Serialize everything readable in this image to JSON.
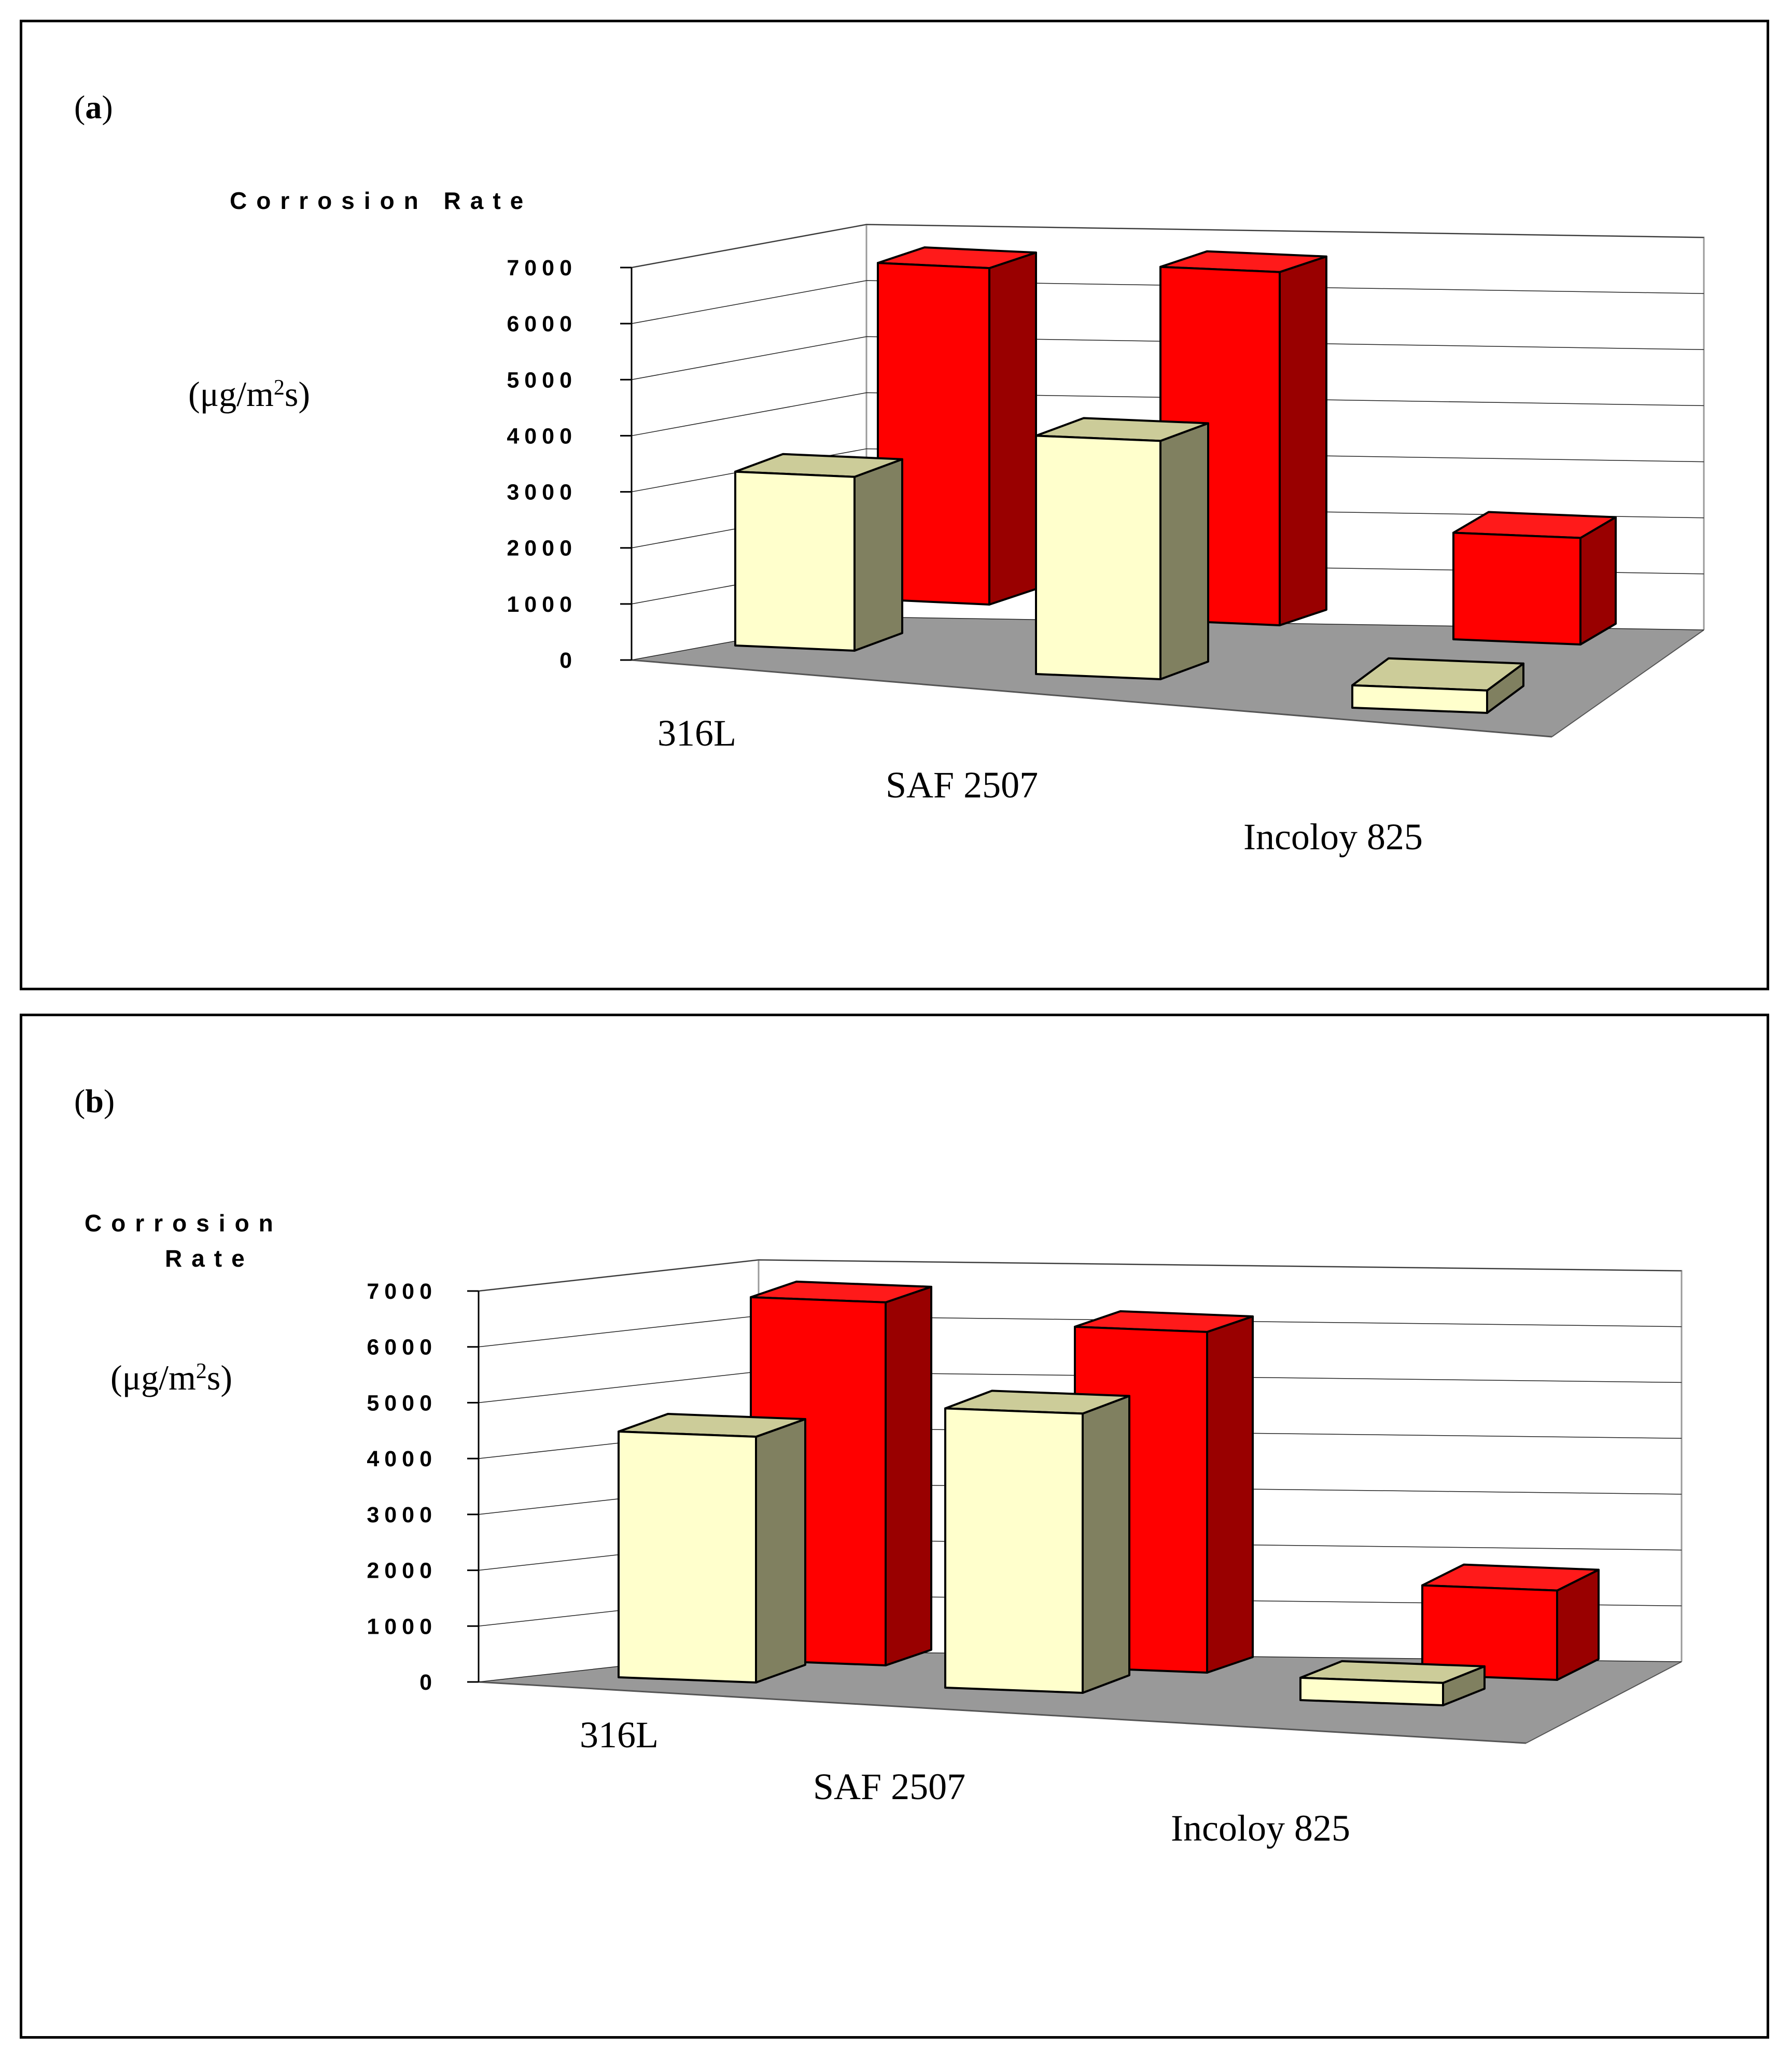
{
  "figure": {
    "panels": [
      {
        "label_open": "(",
        "label_letter": "a",
        "label_close": ")"
      },
      {
        "label_open": "(",
        "label_letter": "b",
        "label_close": ")"
      }
    ]
  },
  "chart_data": [
    {
      "type": "bar",
      "panel": "a",
      "style": "3d-clustered-bar",
      "title_lines": [
        "Corrosion Rate"
      ],
      "unit_label": [
        "(μg/m",
        "2",
        "s)"
      ],
      "categories": [
        "316L",
        "SAF 2507",
        "Incoloy 825"
      ],
      "yticks": [
        "0",
        "1000",
        "2000",
        "3000",
        "4000",
        "5000",
        "6000",
        "7000"
      ],
      "ylim": [
        0,
        7000
      ],
      "grid": true,
      "series": [
        {
          "name": "front",
          "values": [
            3100,
            4250,
            400
          ],
          "colors": {
            "front": "#ffffcc",
            "side": "#808060",
            "top": "#cccc99"
          }
        },
        {
          "name": "back",
          "values": [
            6000,
            6300,
            1900
          ],
          "colors": {
            "front": "#ff0000",
            "side": "#990000",
            "top": "#ff1a1a"
          }
        }
      ]
    },
    {
      "type": "bar",
      "panel": "b",
      "style": "3d-clustered-bar",
      "title_lines": [
        "Corrosion",
        "Rate"
      ],
      "unit_label": [
        "(μg/m",
        "2",
        "s)"
      ],
      "categories": [
        "316L",
        "SAF 2507",
        "Incoloy 825"
      ],
      "yticks": [
        "0",
        "1000",
        "2000",
        "3000",
        "4000",
        "5000",
        "6000",
        "7000"
      ],
      "ylim": [
        0,
        7000
      ],
      "grid": true,
      "series": [
        {
          "name": "front",
          "values": [
            4400,
            5000,
            400
          ],
          "colors": {
            "front": "#ffffcc",
            "side": "#808060",
            "top": "#cccc99"
          }
        },
        {
          "name": "back",
          "values": [
            6500,
            6100,
            1600
          ],
          "colors": {
            "front": "#ff0000",
            "side": "#990000",
            "top": "#ff1a1a"
          }
        }
      ]
    }
  ]
}
